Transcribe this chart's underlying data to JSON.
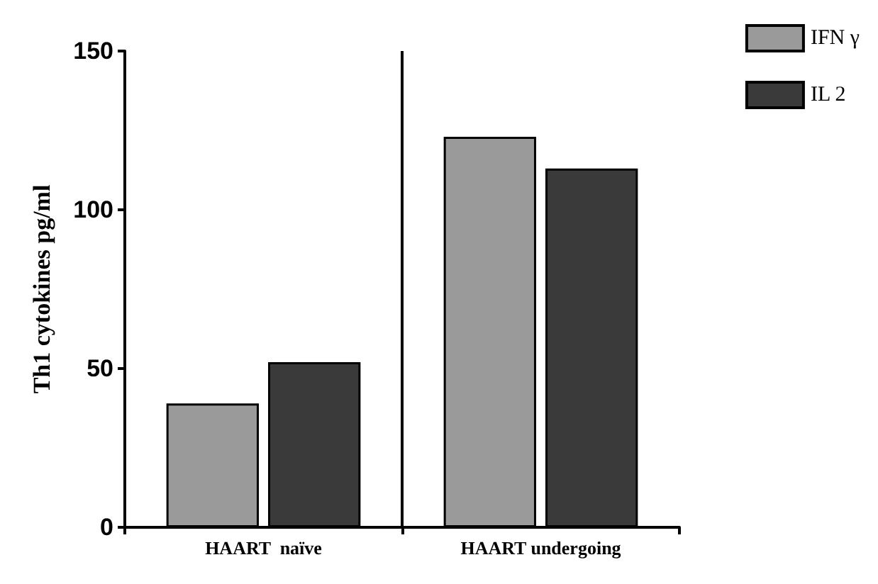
{
  "chart_data": {
    "type": "bar",
    "ylabel": "Th1 cytokines pg/ml",
    "categories": [
      "HAART  naïve",
      "HAART undergoing"
    ],
    "series": [
      {
        "name": "IFN γ",
        "color": "#9a9a9a",
        "values": [
          39,
          123
        ]
      },
      {
        "name": "IL 2",
        "color": "#3a3a3a",
        "values": [
          52,
          113
        ]
      }
    ],
    "ylim": [
      0,
      150
    ],
    "yticks": [
      0,
      50,
      100,
      150
    ],
    "grid": false,
    "legend": "top right"
  }
}
